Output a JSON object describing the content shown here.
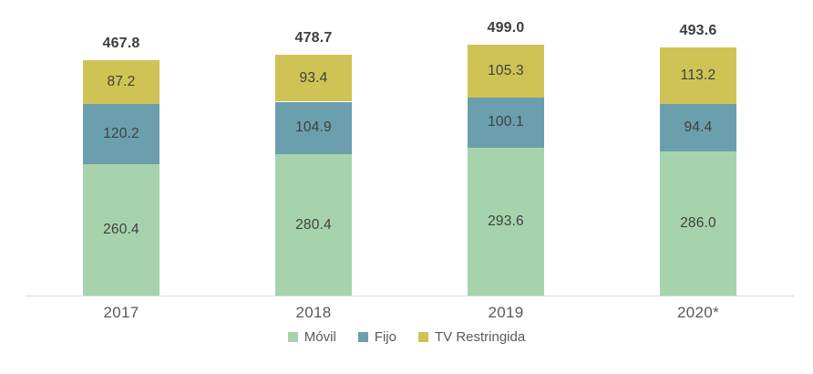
{
  "chart_data": {
    "type": "bar",
    "subtype": "stacked",
    "title": "",
    "xlabel": "",
    "ylabel": "",
    "grid": false,
    "legend_position": "bottom",
    "categories": [
      "2017",
      "2018",
      "2019",
      "2020*"
    ],
    "series": [
      {
        "name": "Móvil",
        "color": "#a6d3ac",
        "values": [
          260.4,
          280.4,
          293.6,
          286.0
        ]
      },
      {
        "name": "Fijo",
        "color": "#6b9fad",
        "values": [
          120.2,
          104.9,
          100.1,
          94.4
        ]
      },
      {
        "name": "TV Restringida",
        "color": "#d0c355",
        "values": [
          87.2,
          93.4,
          105.3,
          113.2
        ]
      }
    ],
    "totals": [
      "467.8",
      "478.7",
      "499.0",
      "493.6"
    ],
    "value_labels": [
      "87.2",
      "93.4",
      "105.3",
      "113.2",
      "120.2",
      "104.9",
      "100.1",
      "94.4",
      "260.4",
      "280.4",
      "293.6",
      "286.0"
    ]
  },
  "styles": {
    "background": "#ffffff",
    "axis_line_color": "#d9d9d9",
    "total_label_color": "#3d3d3d",
    "segment_label_color": "#404040",
    "year_label_color": "#595959",
    "legend_label_color": "#595959"
  }
}
